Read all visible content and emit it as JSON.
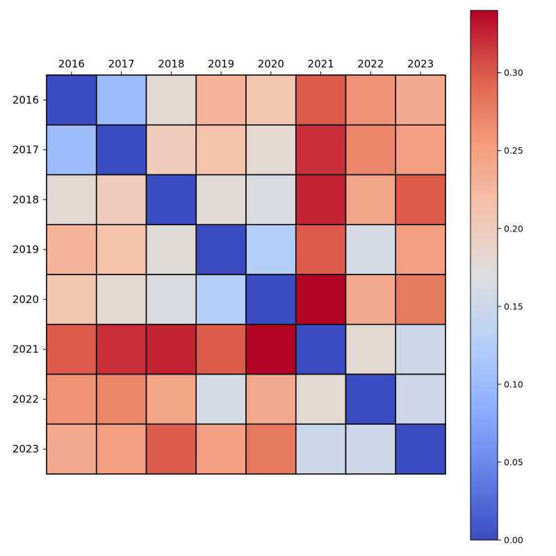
{
  "chart_data": {
    "type": "heatmap",
    "title": "",
    "xlabel": "",
    "ylabel": "",
    "x_categories": [
      "2016",
      "2017",
      "2018",
      "2019",
      "2020",
      "2021",
      "2022",
      "2023"
    ],
    "y_categories": [
      "2016",
      "2017",
      "2018",
      "2019",
      "2020",
      "2021",
      "2022",
      "2023"
    ],
    "x_tick_position": "top",
    "colormap": "coolwarm",
    "vmin": 0.0,
    "vmax": 0.34,
    "values": [
      [
        0.0,
        0.1,
        0.18,
        0.23,
        0.21,
        0.3,
        0.26,
        0.24
      ],
      [
        0.1,
        0.0,
        0.2,
        0.215,
        0.18,
        0.32,
        0.27,
        0.25
      ],
      [
        0.18,
        0.2,
        0.0,
        0.175,
        0.165,
        0.325,
        0.245,
        0.3
      ],
      [
        0.23,
        0.215,
        0.175,
        0.0,
        0.125,
        0.3,
        0.16,
        0.25
      ],
      [
        0.21,
        0.18,
        0.165,
        0.125,
        0.0,
        0.34,
        0.24,
        0.28
      ],
      [
        0.3,
        0.32,
        0.325,
        0.3,
        0.34,
        0.0,
        0.18,
        0.15
      ],
      [
        0.26,
        0.27,
        0.245,
        0.16,
        0.24,
        0.18,
        0.0,
        0.15
      ],
      [
        0.24,
        0.25,
        0.3,
        0.25,
        0.28,
        0.15,
        0.15,
        0.0
      ]
    ],
    "colorbar": {
      "ticks": [
        0.0,
        0.05,
        0.1,
        0.15,
        0.2,
        0.25,
        0.3
      ],
      "tick_labels": [
        "0.00",
        "0.05",
        "0.10",
        "0.15",
        "0.20",
        "0.25",
        "0.30"
      ]
    },
    "grid": false,
    "legend": "colorbar-right"
  }
}
